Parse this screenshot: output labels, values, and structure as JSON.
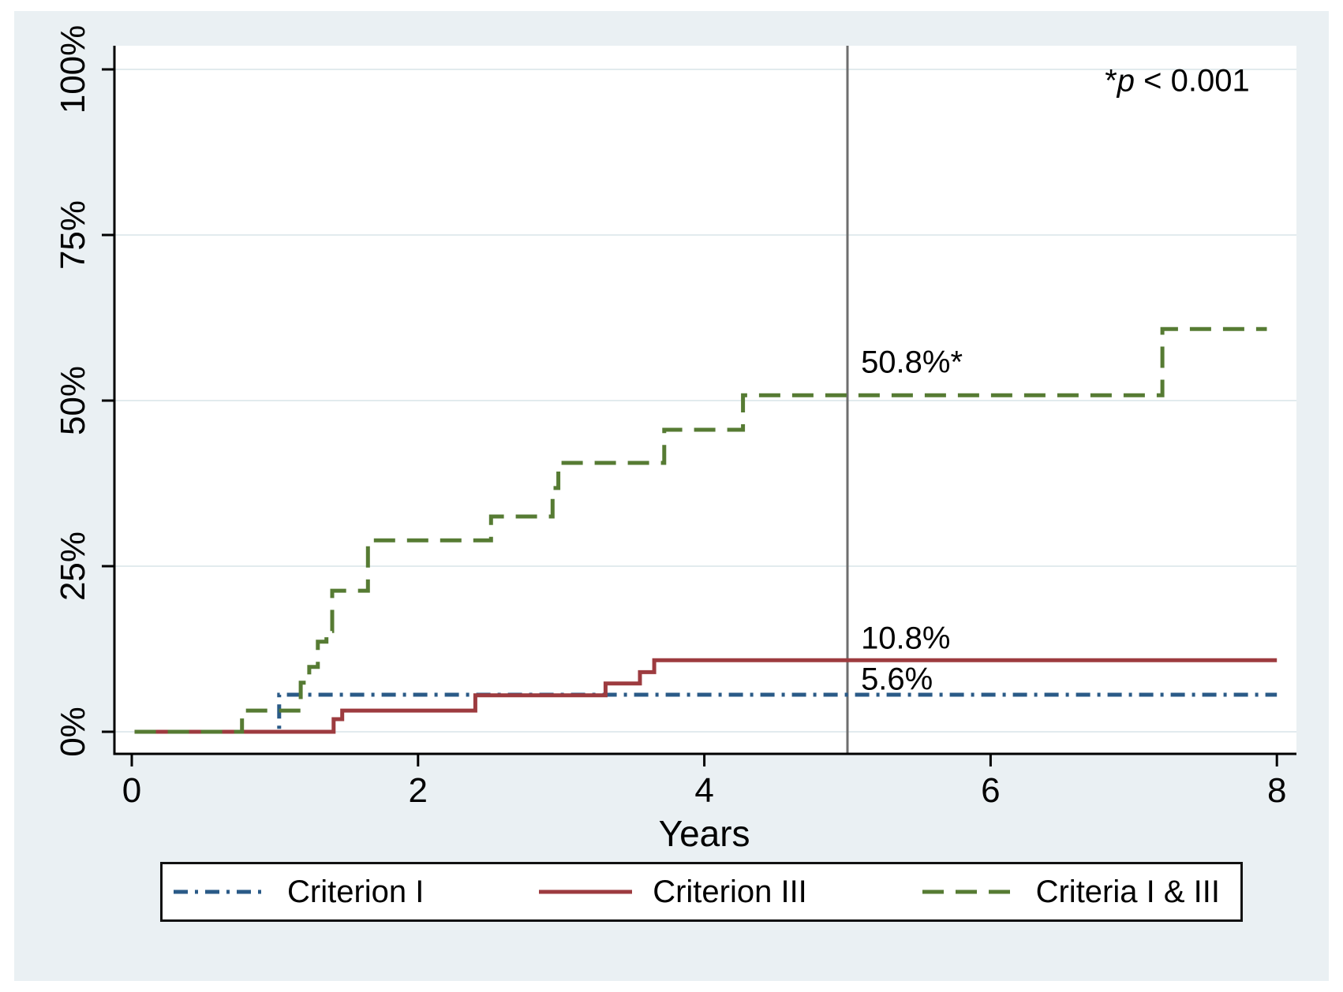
{
  "figure": {
    "bg_color": "#eaf0f3",
    "plot_bg_color": "#ffffff",
    "grid_color": "#e2ebee",
    "axis_color": "#000000",
    "ref_line_color": "#6e6e6e"
  },
  "pvalue": {
    "star": "*",
    "var": "p",
    "rest": " < 0.001"
  },
  "chart_data": {
    "type": "line",
    "subtype": "step",
    "title": "",
    "xlabel": "Years",
    "ylabel": "",
    "xlim": [
      0,
      8
    ],
    "ylim_pct": [
      0,
      100
    ],
    "grid": true,
    "legend_position": "bottom",
    "x_ticks": [
      0,
      2,
      4,
      6,
      8
    ],
    "y_ticks": [
      {
        "pct": 0,
        "label": "0%"
      },
      {
        "pct": 25,
        "label": "25%"
      },
      {
        "pct": 50,
        "label": "50%"
      },
      {
        "pct": 75,
        "label": "75%"
      },
      {
        "pct": 100,
        "label": "100%"
      }
    ],
    "ref_line_x": 5,
    "series": [
      {
        "name": "Criterion I",
        "color": "#2a5a87",
        "dash": "dashdot",
        "points": [
          [
            0.02,
            0
          ],
          [
            1.03,
            0
          ],
          [
            1.03,
            5.6
          ],
          [
            8.0,
            5.6
          ]
        ]
      },
      {
        "name": "Criterion III",
        "color": "#9d3b3f",
        "dash": "solid",
        "points": [
          [
            0.02,
            0
          ],
          [
            1.41,
            0
          ],
          [
            1.41,
            1.9
          ],
          [
            1.47,
            1.9
          ],
          [
            1.47,
            3.2
          ],
          [
            2.4,
            3.2
          ],
          [
            2.4,
            5.5
          ],
          [
            3.31,
            5.5
          ],
          [
            3.31,
            7.3
          ],
          [
            3.55,
            7.3
          ],
          [
            3.55,
            9.0
          ],
          [
            3.65,
            9.0
          ],
          [
            3.65,
            10.8
          ],
          [
            8.0,
            10.8
          ]
        ]
      },
      {
        "name": "Criteria I & III",
        "color": "#567b33",
        "dash": "dashed",
        "points": [
          [
            0.02,
            0
          ],
          [
            0.77,
            0
          ],
          [
            0.77,
            3.2
          ],
          [
            1.18,
            3.2
          ],
          [
            1.18,
            7.4
          ],
          [
            1.24,
            7.4
          ],
          [
            1.24,
            9.8
          ],
          [
            1.3,
            9.8
          ],
          [
            1.3,
            13.6
          ],
          [
            1.36,
            13.6
          ],
          [
            1.36,
            15.2
          ],
          [
            1.4,
            15.2
          ],
          [
            1.4,
            21.3
          ],
          [
            1.65,
            21.3
          ],
          [
            1.65,
            28.9
          ],
          [
            2.51,
            28.9
          ],
          [
            2.51,
            32.5
          ],
          [
            2.94,
            32.5
          ],
          [
            2.94,
            36.8
          ],
          [
            2.98,
            36.8
          ],
          [
            2.98,
            40.6
          ],
          [
            3.72,
            40.6
          ],
          [
            3.72,
            45.6
          ],
          [
            4.27,
            45.6
          ],
          [
            4.27,
            50.8
          ],
          [
            7.2,
            50.8
          ],
          [
            7.2,
            60.8
          ],
          [
            7.93,
            60.8
          ]
        ]
      }
    ],
    "annotations": [
      {
        "text": "50.8%*",
        "x": 5.05,
        "y_pct": 55.5,
        "align": "left"
      },
      {
        "text": "10.8%",
        "x": 5.05,
        "y_pct": 13.8,
        "align": "left"
      },
      {
        "text": "5.6%",
        "x": 5.05,
        "y_pct": 7.6,
        "align": "left"
      }
    ],
    "pvalue_note": "*p < 0.001"
  },
  "legend": {
    "items": [
      {
        "label": "Criterion I",
        "series_index": 0
      },
      {
        "label": "Criterion III",
        "series_index": 1
      },
      {
        "label": "Criteria I & III",
        "series_index": 2
      }
    ]
  }
}
